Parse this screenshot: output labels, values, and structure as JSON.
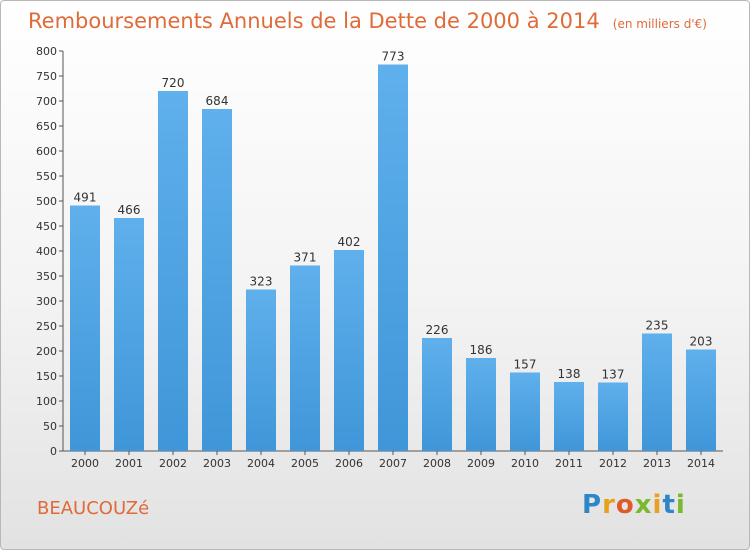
{
  "chart_data": {
    "type": "bar",
    "title": "Remboursements Annuels de la Dette de 2000 à 2014",
    "subtitle": "(en milliers d'€)",
    "categories": [
      "2000",
      "2001",
      "2002",
      "2003",
      "2004",
      "2005",
      "2006",
      "2007",
      "2008",
      "2009",
      "2010",
      "2011",
      "2012",
      "2013",
      "2014"
    ],
    "values": [
      491,
      466,
      720,
      684,
      323,
      371,
      402,
      773,
      226,
      186,
      157,
      138,
      137,
      235,
      203
    ],
    "ylim": [
      0,
      800
    ],
    "yticks": [
      0,
      50,
      100,
      150,
      200,
      250,
      300,
      350,
      400,
      450,
      500,
      550,
      600,
      650,
      700,
      750,
      800
    ],
    "grid": false,
    "bar_color": "#3f96d8"
  },
  "footer": {
    "place": "BEAUCOUZé",
    "logo_letters": [
      "P",
      "r",
      "o",
      "x",
      "i",
      "t",
      "i"
    ],
    "logo_colors": [
      "#2e86c8",
      "#e8a020",
      "#e05a28",
      "#7ab82e",
      "#e8a020",
      "#2e86c8",
      "#7ab82e"
    ]
  }
}
